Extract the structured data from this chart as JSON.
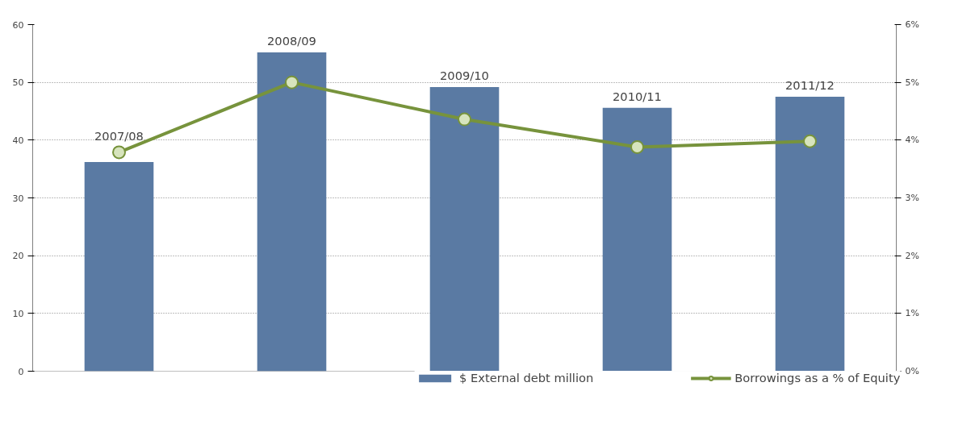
{
  "chart_data": {
    "type": "bar",
    "categories": [
      "2007/08",
      "2008/09",
      "2009/10",
      "2010/11",
      "2011/12"
    ],
    "series": [
      {
        "name": "$ External debt million",
        "color": "#5a7aa3",
        "values": [
          36.2,
          55.2,
          49.2,
          45.6,
          47.5
        ]
      },
      {
        "name": "Borrowings as a % of Equity",
        "type": "line",
        "axis": "y2",
        "color": "#77933c",
        "values": [
          3.79,
          5.0,
          4.36,
          3.88,
          3.98
        ]
      }
    ],
    "ylim": [
      0,
      60
    ],
    "yticks": [
      0,
      10,
      20,
      30,
      40,
      50,
      60
    ],
    "y2lim": [
      0,
      6
    ],
    "y2ticks": [
      {
        "value": 0,
        "label": "0%"
      },
      {
        "value": 1,
        "label": "1%"
      },
      {
        "value": 2,
        "label": "2%"
      },
      {
        "value": 3,
        "label": "3%"
      },
      {
        "value": 4,
        "label": "4%"
      },
      {
        "value": 5,
        "label": "5%"
      },
      {
        "value": 6,
        "label": "6%"
      }
    ],
    "grid": "y",
    "legend": "bottom",
    "marker": "circle",
    "line_style": "solid"
  }
}
